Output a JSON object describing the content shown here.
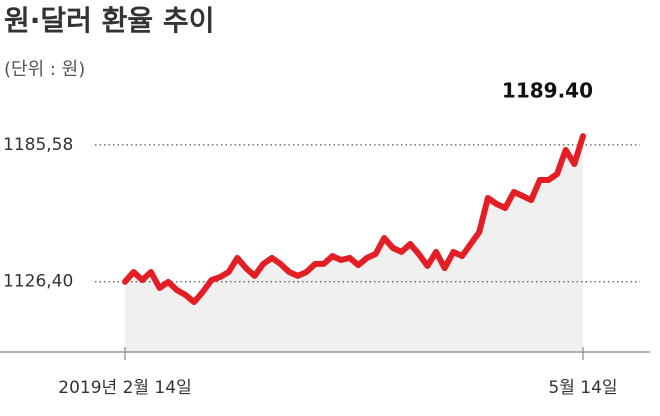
{
  "chart_data": {
    "type": "line",
    "title": "원·달러 환율 추이",
    "subtitle": "(단위 : 원)",
    "categories": [
      "2019년 2월 14일",
      null,
      null,
      null,
      null,
      null,
      null,
      null,
      null,
      null,
      null,
      null,
      null,
      null,
      null,
      null,
      null,
      null,
      null,
      null,
      null,
      null,
      null,
      null,
      null,
      null,
      null,
      null,
      null,
      null,
      null,
      null,
      null,
      null,
      null,
      null,
      null,
      null,
      null,
      null,
      null,
      null,
      null,
      null,
      null,
      null,
      null,
      null,
      null,
      null,
      null,
      null,
      null,
      "5월 14일"
    ],
    "values": [
      1126.4,
      1130.6,
      1127.1,
      1130.6,
      1123.7,
      1126.3,
      1122.8,
      1120.7,
      1117.6,
      1122.0,
      1127.1,
      1128.4,
      1130.6,
      1136.7,
      1132.3,
      1128.9,
      1134.1,
      1136.7,
      1134.1,
      1130.6,
      1128.9,
      1130.6,
      1134.1,
      1134.1,
      1137.5,
      1135.8,
      1136.7,
      1133.6,
      1136.7,
      1138.4,
      1145.3,
      1141.0,
      1139.3,
      1142.7,
      1138.4,
      1133.2,
      1139.3,
      1132.3,
      1139.3,
      1137.5,
      1142.7,
      1147.9,
      1162.6,
      1160.0,
      1158.3,
      1165.2,
      1163.5,
      1161.7,
      1170.4,
      1170.4,
      1173.0,
      1183.4,
      1177.3,
      1189.4
    ],
    "value_labels": [
      null,
      null,
      null,
      null,
      null,
      null,
      null,
      null,
      null,
      null,
      null,
      null,
      null,
      null,
      null,
      null,
      null,
      null,
      null,
      null,
      null,
      null,
      null,
      null,
      null,
      null,
      null,
      null,
      null,
      null,
      null,
      null,
      null,
      null,
      null,
      null,
      null,
      null,
      null,
      null,
      null,
      null,
      null,
      null,
      null,
      null,
      null,
      null,
      null,
      null,
      null,
      null,
      null,
      "1189.40"
    ],
    "color": "#e31e24",
    "area_color": "#f0f0f0",
    "ylim": [
      1096,
      1205
    ],
    "yticks": [
      {
        "value": 1126.4,
        "label": "1126,40"
      },
      {
        "value": 1185.58,
        "label": "1185,58"
      }
    ]
  }
}
